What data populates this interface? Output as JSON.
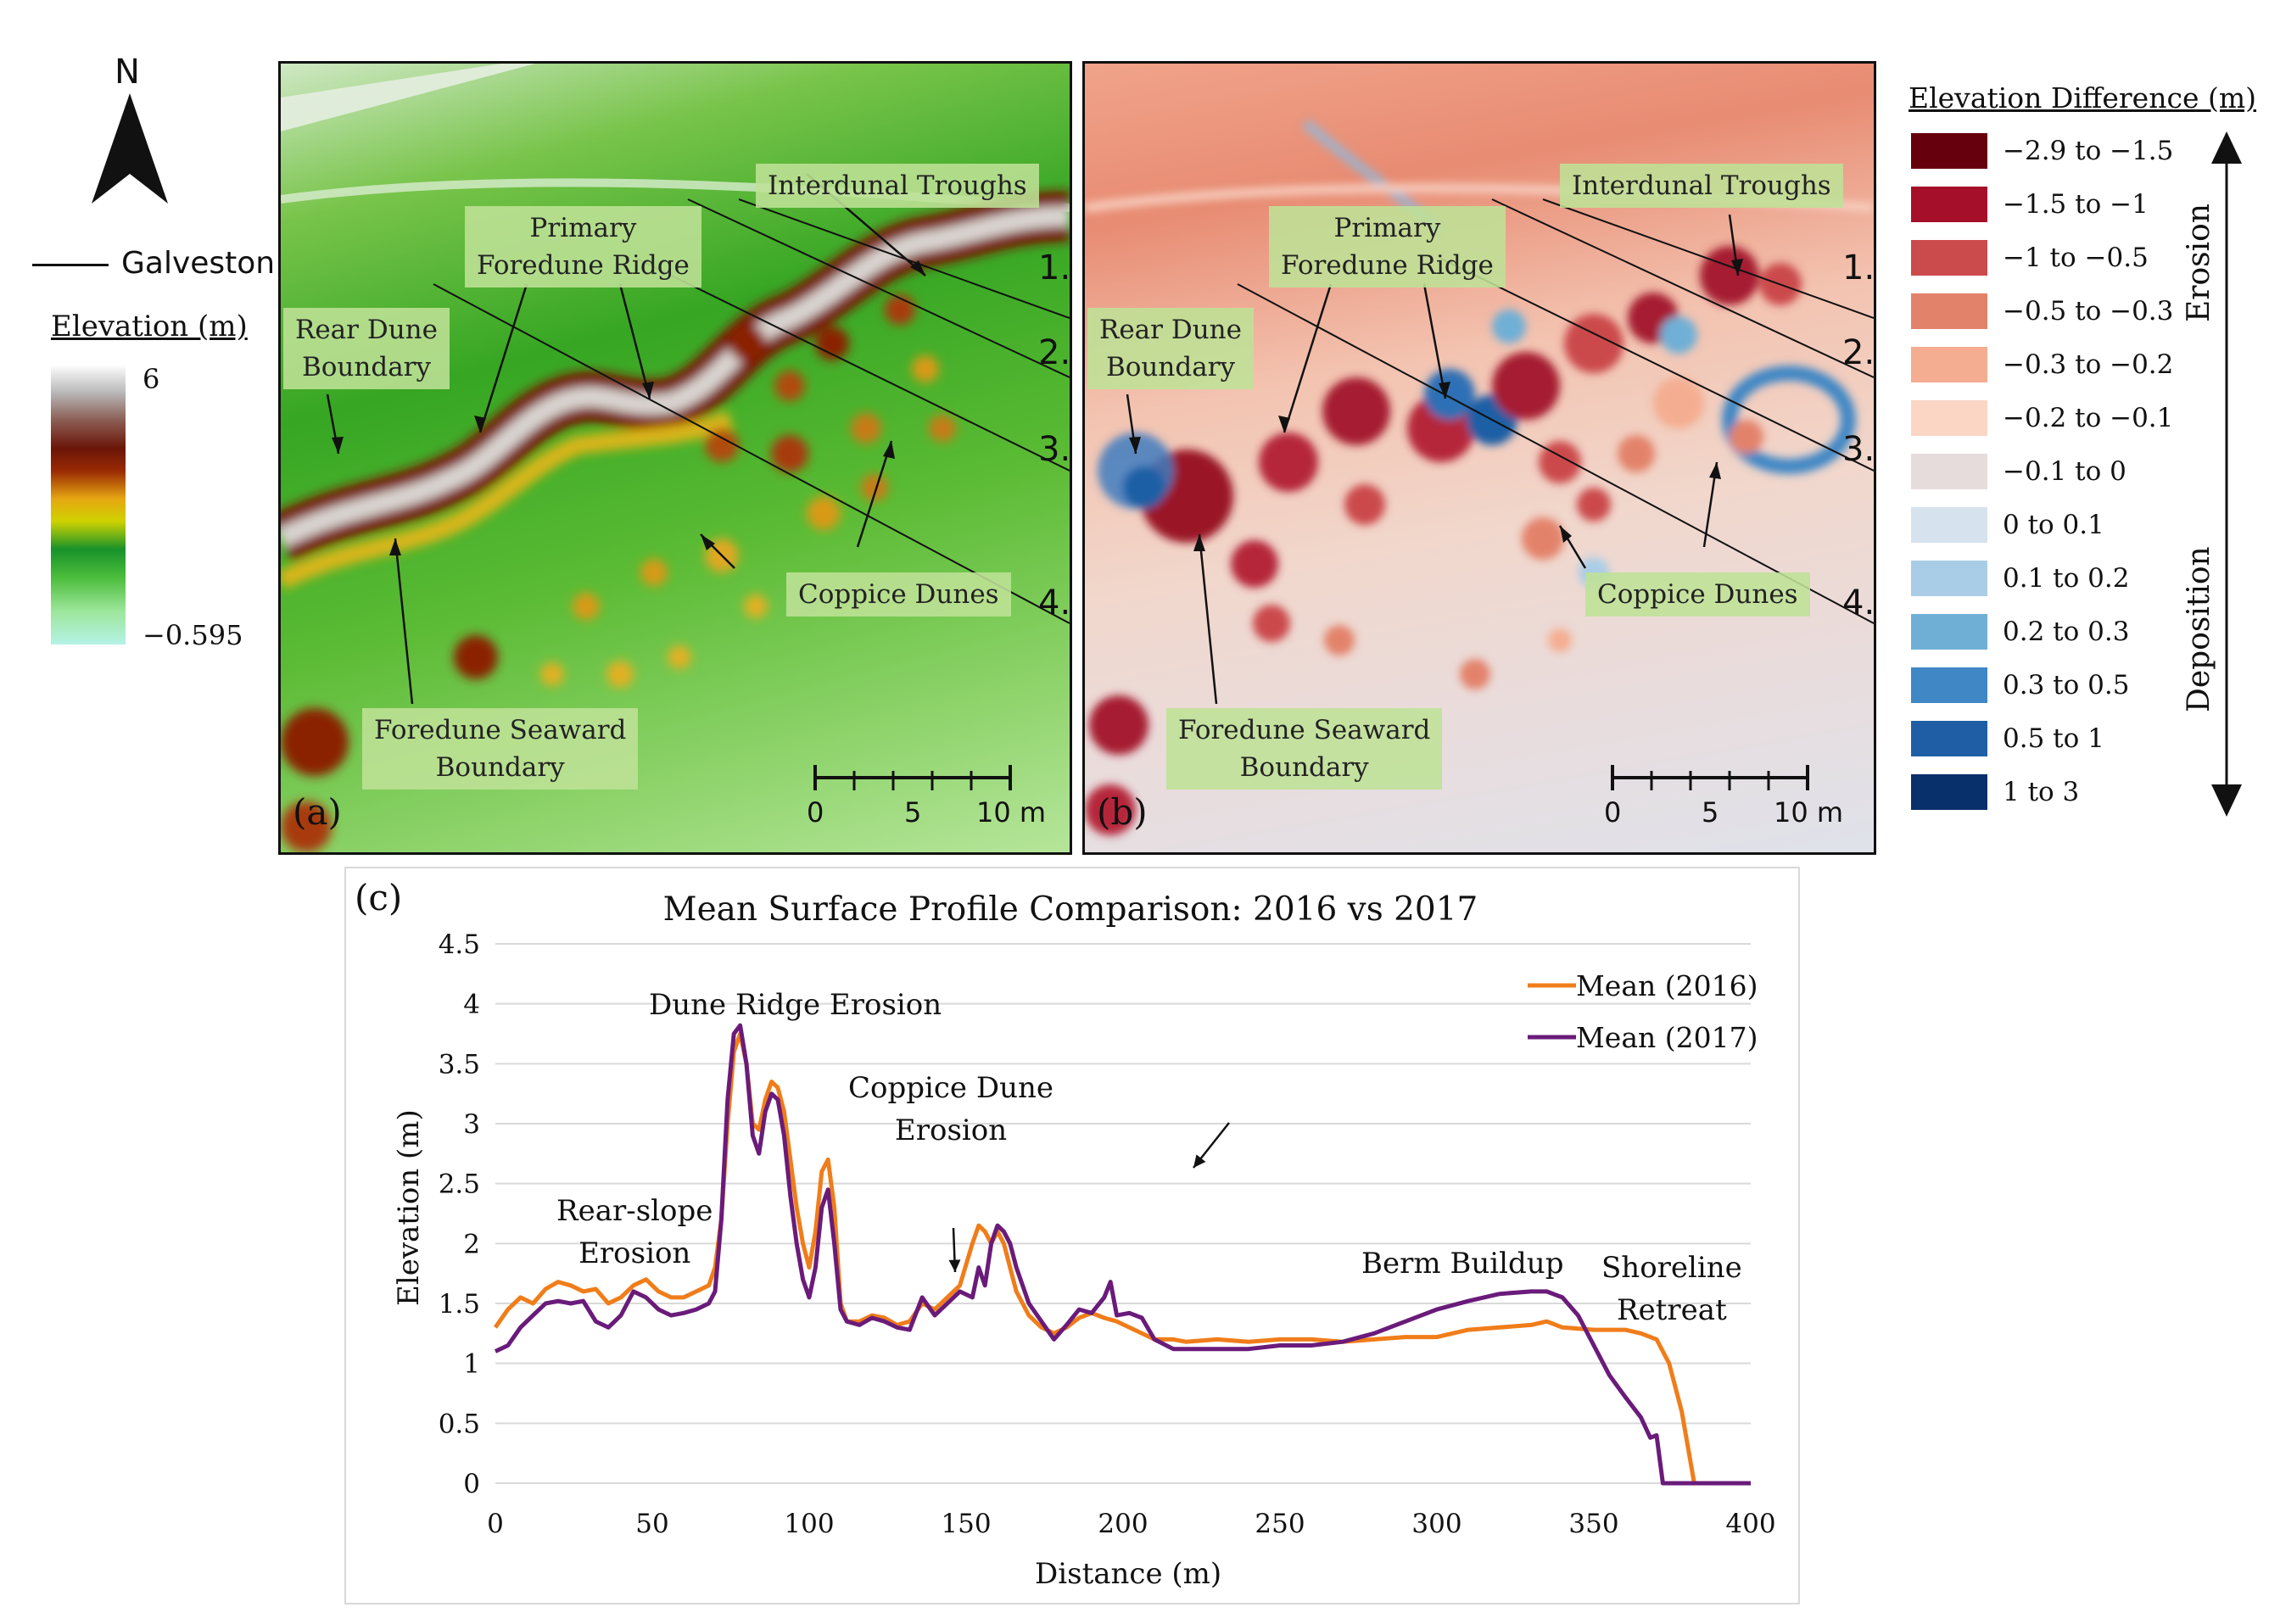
{
  "north_label": "N",
  "galveston_label": "Galveston",
  "elevation_legend": {
    "title": "Elevation (m)",
    "max": "6",
    "min": "−0.595"
  },
  "panel_a": {
    "label": "(a)",
    "annotations": [
      "Interdunal Troughs",
      "Primary\nForedune Ridge",
      "Rear Dune\nBoundary",
      "Coppice Dunes",
      "Foredune Seaward\nBoundary"
    ],
    "profile_numbers": [
      "1.",
      "2.",
      "3.",
      "4."
    ],
    "scale_ticks": [
      "0",
      "5",
      "10 m"
    ]
  },
  "panel_b": {
    "label": "(b)",
    "annotations": [
      "Interdunal Troughs",
      "Primary\nForedune Ridge",
      "Rear Dune\nBoundary",
      "Coppice Dunes",
      "Foredune Seaward\nBoundary"
    ],
    "profile_numbers": [
      "1.",
      "2.",
      "3.",
      "4."
    ],
    "scale_ticks": [
      "0",
      "5",
      "10 m"
    ]
  },
  "diff_legend": {
    "title": "Elevation Difference (m)",
    "erosion_label": "Erosion",
    "deposition_label": "Deposition",
    "classes": [
      {
        "label": "−2.9 to −1.5",
        "color": "#67000d"
      },
      {
        "label": "−1.5 to −1",
        "color": "#a50f2a"
      },
      {
        "label": "−1 to −0.5",
        "color": "#cb4a4c"
      },
      {
        "label": "−0.5 to −0.3",
        "color": "#e3826a"
      },
      {
        "label": "−0.3 to −0.2",
        "color": "#f4ad90"
      },
      {
        "label": "−0.2 to −0.1",
        "color": "#fbd6c4"
      },
      {
        "label": "−0.1 to 0",
        "color": "#e6dcdc"
      },
      {
        "label": "0 to 0.1",
        "color": "#d6e3ee"
      },
      {
        "label": "0.1 to 0.2",
        "color": "#a9cde6"
      },
      {
        "label": "0.2 to 0.3",
        "color": "#6fafd6"
      },
      {
        "label": "0.3 to 0.5",
        "color": "#3f87c5"
      },
      {
        "label": "0.5 to 1",
        "color": "#1f5ea5"
      },
      {
        "label": "1 to 3",
        "color": "#08306b"
      }
    ]
  },
  "chart_data": {
    "type": "line",
    "panel_label": "(c)",
    "title": "Mean Surface Profile Comparison: 2016 vs 2017",
    "xlabel": "Distance (m)",
    "ylabel": "Elevation (m)",
    "xlim": [
      0,
      400
    ],
    "ylim": [
      0,
      4.5
    ],
    "xticks": [
      "0",
      "50",
      "100",
      "150",
      "200",
      "250",
      "300",
      "350",
      "400"
    ],
    "yticks": [
      "0",
      "0.5",
      "1",
      "1.5",
      "2",
      "2.5",
      "3",
      "3.5",
      "4",
      "4.5"
    ],
    "grid": true,
    "legend_position": "top-right",
    "series": [
      {
        "name": "Mean (2016)",
        "color": "#f07d1a",
        "x": [
          0,
          4,
          8,
          12,
          16,
          20,
          24,
          28,
          32,
          36,
          40,
          44,
          48,
          52,
          56,
          60,
          64,
          68,
          70,
          72,
          74,
          76,
          78,
          80,
          82,
          84,
          86,
          88,
          90,
          92,
          94,
          96,
          98,
          100,
          102,
          104,
          106,
          108,
          110,
          112,
          116,
          120,
          124,
          128,
          132,
          136,
          140,
          144,
          148,
          152,
          154,
          156,
          158,
          160,
          162,
          164,
          166,
          170,
          174,
          178,
          182,
          186,
          190,
          194,
          198,
          202,
          206,
          210,
          216,
          220,
          230,
          240,
          250,
          260,
          270,
          280,
          290,
          300,
          310,
          320,
          330,
          335,
          340,
          350,
          360,
          365,
          370,
          374,
          378,
          380,
          382,
          390,
          400
        ],
        "y": [
          1.3,
          1.45,
          1.55,
          1.5,
          1.62,
          1.68,
          1.65,
          1.6,
          1.62,
          1.5,
          1.55,
          1.65,
          1.7,
          1.6,
          1.55,
          1.55,
          1.6,
          1.65,
          1.8,
          2.2,
          3.0,
          3.6,
          3.75,
          3.5,
          3.0,
          2.95,
          3.2,
          3.35,
          3.3,
          3.1,
          2.7,
          2.3,
          2.0,
          1.8,
          2.1,
          2.6,
          2.7,
          2.3,
          1.5,
          1.35,
          1.35,
          1.4,
          1.38,
          1.32,
          1.35,
          1.5,
          1.45,
          1.55,
          1.65,
          2.0,
          2.15,
          2.1,
          2.0,
          2.1,
          2.0,
          1.8,
          1.6,
          1.4,
          1.3,
          1.25,
          1.3,
          1.38,
          1.42,
          1.38,
          1.35,
          1.3,
          1.25,
          1.2,
          1.2,
          1.18,
          1.2,
          1.18,
          1.2,
          1.2,
          1.18,
          1.2,
          1.22,
          1.22,
          1.28,
          1.3,
          1.32,
          1.35,
          1.3,
          1.28,
          1.28,
          1.25,
          1.2,
          1.0,
          0.6,
          0.3,
          0.0,
          0.0,
          0.0
        ]
      },
      {
        "name": "Mean (2017)",
        "color": "#6a1b7a",
        "x": [
          0,
          4,
          8,
          12,
          16,
          20,
          24,
          28,
          32,
          36,
          40,
          44,
          48,
          52,
          56,
          60,
          64,
          68,
          70,
          72,
          74,
          76,
          78,
          80,
          82,
          84,
          86,
          88,
          90,
          92,
          94,
          96,
          98,
          100,
          102,
          104,
          106,
          108,
          110,
          112,
          116,
          120,
          124,
          128,
          132,
          136,
          140,
          144,
          148,
          152,
          154,
          156,
          158,
          160,
          162,
          164,
          166,
          170,
          174,
          178,
          182,
          186,
          190,
          194,
          196,
          198,
          202,
          206,
          210,
          216,
          220,
          230,
          240,
          250,
          260,
          270,
          280,
          290,
          300,
          310,
          320,
          330,
          335,
          340,
          345,
          350,
          355,
          360,
          365,
          368,
          370,
          372,
          380,
          390,
          400
        ],
        "y": [
          1.1,
          1.15,
          1.3,
          1.4,
          1.5,
          1.52,
          1.5,
          1.52,
          1.35,
          1.3,
          1.4,
          1.6,
          1.55,
          1.45,
          1.4,
          1.42,
          1.45,
          1.5,
          1.6,
          2.2,
          3.2,
          3.75,
          3.82,
          3.5,
          2.9,
          2.75,
          3.1,
          3.25,
          3.2,
          2.9,
          2.4,
          2.0,
          1.7,
          1.55,
          1.8,
          2.3,
          2.45,
          2.0,
          1.45,
          1.35,
          1.32,
          1.38,
          1.35,
          1.3,
          1.28,
          1.55,
          1.4,
          1.5,
          1.6,
          1.55,
          1.8,
          1.65,
          2.0,
          2.15,
          2.1,
          2.0,
          1.8,
          1.5,
          1.35,
          1.2,
          1.32,
          1.45,
          1.42,
          1.55,
          1.68,
          1.4,
          1.42,
          1.38,
          1.2,
          1.12,
          1.12,
          1.12,
          1.12,
          1.15,
          1.15,
          1.18,
          1.25,
          1.35,
          1.45,
          1.52,
          1.58,
          1.6,
          1.6,
          1.55,
          1.4,
          1.15,
          0.9,
          0.72,
          0.55,
          0.38,
          0.4,
          0.0,
          0.0,
          0.0,
          0.0
        ]
      }
    ],
    "annotations": [
      "Dune Ridge Erosion",
      "Coppice Dune\nErosion",
      "Rear-slope\nErosion",
      "Berm Buildup",
      "Shoreline\nRetreat"
    ]
  }
}
